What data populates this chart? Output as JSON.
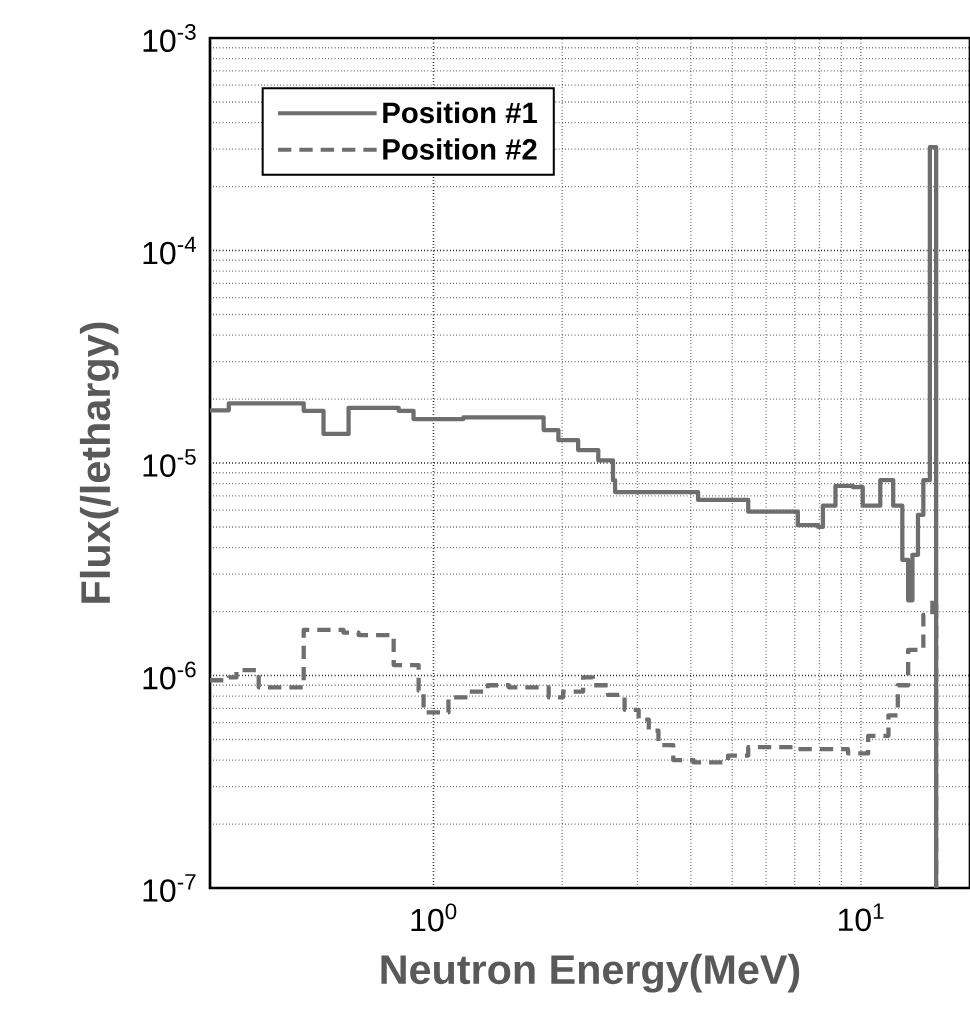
{
  "chart_data": {
    "type": "step",
    "xlabel": "Neutron   Energy(MeV)",
    "ylabel": "Flux(/lethargy)",
    "log": "xy",
    "grid": true,
    "legend": "top left",
    "xlim": [
      0.3,
      18
    ],
    "ylim": [
      1e-07,
      0.001
    ],
    "xticks": [
      {
        "value": 1,
        "label": "10$^{0}$"
      },
      {
        "value": 10,
        "label": "10$^{1}$"
      }
    ],
    "yticks": [
      {
        "value": 1e-07,
        "label": "10$^{-7}$"
      },
      {
        "value": 1e-06,
        "label": "10$^{-6}$"
      },
      {
        "value": 1e-05,
        "label": "10$^{-5}$"
      },
      {
        "value": 0.0001,
        "label": "10$^{-4}$"
      },
      {
        "value": 0.001,
        "label": "10$^{-3}$"
      }
    ],
    "series": [
      {
        "name": "Position   #1",
        "color": "#6e6e6e",
        "line_style": "solid",
        "x": [
          0.3,
          0.332,
          0.497,
          0.553,
          0.633,
          0.829,
          0.898,
          1.175,
          1.81,
          1.96,
          2.18,
          2.43,
          2.63,
          2.66,
          4.16,
          5.45,
          7.12,
          7.94,
          8.15,
          8.72,
          9.58,
          10.1,
          11.1,
          11.9,
          12.5,
          12.9,
          13.2,
          13.6,
          14.0,
          14.5,
          15.0
        ],
        "values": [
          1.77e-05,
          1.91e-05,
          1.76e-05,
          1.37e-05,
          1.82e-05,
          1.76e-05,
          1.61e-05,
          1.64e-05,
          1.43e-05,
          1.28e-05,
          1.15e-05,
          1.03e-05,
          8.3e-06,
          7.3e-06,
          6.7e-06,
          5.9e-06,
          5.1e-06,
          5e-06,
          6.3e-06,
          7.8e-06,
          7.7e-06,
          6.3e-06,
          8.3e-06,
          6.3e-06,
          3.5e-06,
          2.26e-06,
          3.7e-06,
          5.7e-06,
          8.3e-06,
          0.000307,
          1e-07
        ]
      },
      {
        "name": "Position   #2",
        "color": "#6e6e6e",
        "line_style": "dashed",
        "x": [
          0.3,
          0.332,
          0.346,
          0.39,
          0.497,
          0.616,
          0.668,
          0.807,
          0.923,
          0.948,
          1.084,
          1.21,
          1.34,
          1.5,
          1.86,
          2.01,
          2.24,
          2.36,
          2.56,
          2.8,
          3.02,
          3.19,
          3.36,
          3.64,
          4.06,
          4.89,
          5.45,
          7.12,
          9.33,
          10.4,
          11.6,
          12.2,
          12.9,
          14.0,
          14.7,
          15.0
        ],
        "values": [
          9.5e-07,
          9.8e-07,
          1.06e-06,
          8.8e-07,
          1.64e-06,
          1.59e-06,
          1.55e-06,
          1.12e-06,
          8.5e-07,
          6.7e-07,
          7.9e-07,
          8.4e-07,
          9e-07,
          8.8e-07,
          7.9e-07,
          8.4e-07,
          9.8e-07,
          9e-07,
          8.1e-07,
          6.9e-07,
          6.2e-07,
          5.5e-07,
          4.7e-07,
          4e-07,
          3.9e-07,
          4.2e-07,
          4.6e-07,
          4.5e-07,
          4.3e-07,
          5.2e-07,
          6.5e-07,
          9e-07,
          1.32e-06,
          1.93e-06,
          2.26e-06,
          1e-07
        ]
      }
    ]
  }
}
